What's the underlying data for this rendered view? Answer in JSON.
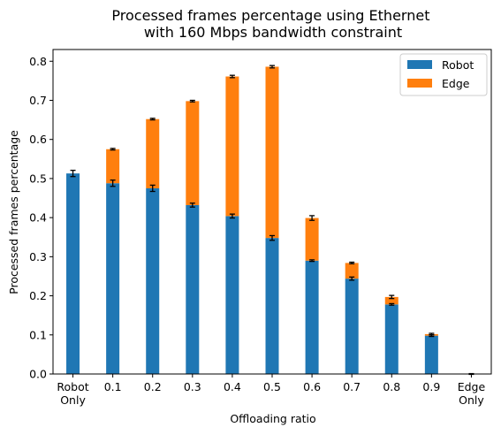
{
  "chart_data": {
    "type": "bar",
    "stacked": true,
    "title": [
      "Processed frames percentage using Ethernet",
      "with 160 Mbps bandwidth constraint"
    ],
    "xlabel": "Offloading ratio",
    "ylabel": "Processed frames percentage",
    "categories": [
      [
        "Robot",
        "Only"
      ],
      [
        "0.1"
      ],
      [
        "0.2"
      ],
      [
        "0.3"
      ],
      [
        "0.4"
      ],
      [
        "0.5"
      ],
      [
        "0.6"
      ],
      [
        "0.7"
      ],
      [
        "0.8"
      ],
      [
        "0.9"
      ],
      [
        "Edge",
        "Only"
      ]
    ],
    "ylim": [
      0,
      0.83
    ],
    "yticks": [
      "0.0",
      "0.1",
      "0.2",
      "0.3",
      "0.4",
      "0.5",
      "0.6",
      "0.7",
      "0.8"
    ],
    "legend": {
      "position": "top-right"
    },
    "series": [
      {
        "name": "Robot",
        "color": "#1f77b4",
        "values": [
          0.513,
          0.488,
          0.475,
          0.432,
          0.404,
          0.348,
          0.29,
          0.244,
          0.178,
          0.098,
          0.0
        ],
        "errors": [
          0.008,
          0.008,
          0.008,
          0.005,
          0.005,
          0.006,
          0.002,
          0.004,
          0.002,
          0.002,
          0.0
        ]
      },
      {
        "name": "Edge",
        "color": "#ff7f0e",
        "values": [
          0.0,
          0.087,
          0.177,
          0.266,
          0.357,
          0.438,
          0.109,
          0.04,
          0.019,
          0.004,
          0.0
        ],
        "errors": [
          0.0,
          0.002,
          0.002,
          0.002,
          0.003,
          0.003,
          0.006,
          0.002,
          0.004,
          0.002,
          0.001
        ]
      }
    ]
  }
}
